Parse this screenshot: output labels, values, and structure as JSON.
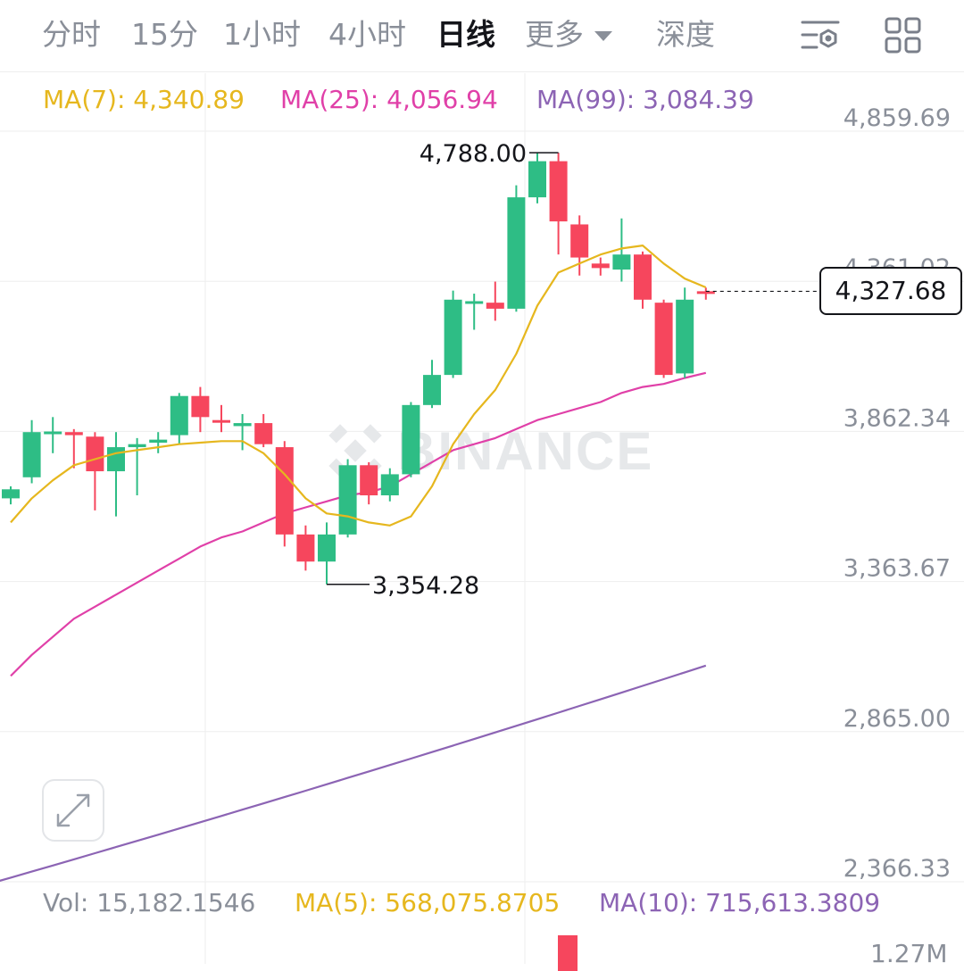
{
  "tabs": [
    {
      "label": "分时",
      "active": false
    },
    {
      "label": "15分",
      "active": false
    },
    {
      "label": "1小时",
      "active": false
    },
    {
      "label": "4小时",
      "active": false
    },
    {
      "label": "日线",
      "active": true
    },
    {
      "label": "更多",
      "active": false
    },
    {
      "label": "深度",
      "active": false
    }
  ],
  "toolbar": {
    "icons": [
      "indicator-settings-icon",
      "grid-layout-icon"
    ]
  },
  "legend": {
    "ma7": "MA(7): 4,340.89",
    "ma25": "MA(25): 4,056.94",
    "ma99": "MA(99): 3,084.39"
  },
  "volume_legend": {
    "vol": "Vol: 15,182.1546",
    "ma5": "MA(5): 568,075.8705",
    "ma10": "MA(10): 715,613.3809"
  },
  "watermark": "BINANCE",
  "current_price": "4,327.68",
  "high_label": "4,788.00",
  "low_label": "3,354.28",
  "volume_axis_label": "1.27M",
  "colors": {
    "up": "#2ebd85",
    "down": "#f6465d",
    "ma7": "#e6b71e",
    "ma25": "#e040a8",
    "ma99": "#8c64b4",
    "grid": "#eeeeee",
    "axis_text": "#8a8f99"
  },
  "chart_data": {
    "type": "candlestick",
    "y_axis": {
      "ticks": [
        4859.69,
        4361.02,
        3862.34,
        3363.67,
        2865.0,
        2366.33
      ],
      "tick_labels": [
        "4,859.69",
        "4,361.02",
        "3,862.34",
        "3,363.67",
        "2,865.00",
        "2,366.33"
      ]
    },
    "candles": [
      {
        "o": 3640,
        "c": 3670,
        "h": 3680,
        "l": 3620
      },
      {
        "o": 3710,
        "c": 3860,
        "h": 3900,
        "l": 3690
      },
      {
        "o": 3858,
        "c": 3862,
        "h": 3910,
        "l": 3790
      },
      {
        "o": 3860,
        "c": 3850,
        "h": 3870,
        "l": 3740
      },
      {
        "o": 3845,
        "c": 3730,
        "h": 3860,
        "l": 3600
      },
      {
        "o": 3730,
        "c": 3810,
        "h": 3860,
        "l": 3580
      },
      {
        "o": 3810,
        "c": 3820,
        "h": 3840,
        "l": 3650
      },
      {
        "o": 3825,
        "c": 3835,
        "h": 3860,
        "l": 3790
      },
      {
        "o": 3850,
        "c": 3980,
        "h": 3990,
        "l": 3820
      },
      {
        "o": 3980,
        "c": 3910,
        "h": 4010,
        "l": 3860
      },
      {
        "o": 3900,
        "c": 3895,
        "h": 3950,
        "l": 3860
      },
      {
        "o": 3880,
        "c": 3890,
        "h": 3920,
        "l": 3800
      },
      {
        "o": 3890,
        "c": 3820,
        "h": 3920,
        "l": 3810
      },
      {
        "o": 3810,
        "c": 3520,
        "h": 3830,
        "l": 3480
      },
      {
        "o": 3520,
        "c": 3430,
        "h": 3550,
        "l": 3400
      },
      {
        "o": 3430,
        "c": 3520,
        "h": 3560,
        "l": 3354.28
      },
      {
        "o": 3520,
        "c": 3750,
        "h": 3770,
        "l": 3510
      },
      {
        "o": 3750,
        "c": 3650,
        "h": 3760,
        "l": 3620
      },
      {
        "o": 3650,
        "c": 3720,
        "h": 3740,
        "l": 3630
      },
      {
        "o": 3720,
        "c": 3950,
        "h": 3960,
        "l": 3710
      },
      {
        "o": 3950,
        "c": 4050,
        "h": 4100,
        "l": 3940
      },
      {
        "o": 4050,
        "c": 4300,
        "h": 4330,
        "l": 4040
      },
      {
        "o": 4290,
        "c": 4295,
        "h": 4320,
        "l": 4200
      },
      {
        "o": 4290,
        "c": 4270,
        "h": 4360,
        "l": 4230
      },
      {
        "o": 4270,
        "c": 4640,
        "h": 4680,
        "l": 4260
      },
      {
        "o": 4640,
        "c": 4760,
        "h": 4788.0,
        "l": 4620
      },
      {
        "o": 4760,
        "c": 4560,
        "h": 4788.0,
        "l": 4450
      },
      {
        "o": 4550,
        "c": 4440,
        "h": 4580,
        "l": 4380
      },
      {
        "o": 4420,
        "c": 4405,
        "h": 4440,
        "l": 4380
      },
      {
        "o": 4400,
        "c": 4450,
        "h": 4570,
        "l": 4360
      },
      {
        "o": 4450,
        "c": 4300,
        "h": 4460,
        "l": 4270
      },
      {
        "o": 4290,
        "c": 4050,
        "h": 4300,
        "l": 4040
      },
      {
        "o": 4055,
        "c": 4300,
        "h": 4340,
        "l": 4040
      },
      {
        "o": 4328,
        "c": 4327.68,
        "h": 4340,
        "l": 4300
      }
    ],
    "ma7": [
      3560,
      3640,
      3700,
      3750,
      3770,
      3790,
      3800,
      3810,
      3820,
      3825,
      3830,
      3830,
      3790,
      3720,
      3640,
      3590,
      3580,
      3560,
      3550,
      3580,
      3680,
      3820,
      3920,
      4000,
      4120,
      4280,
      4390,
      4420,
      4450,
      4470,
      4480,
      4420,
      4370,
      4340.89
    ],
    "ma25": [
      3050,
      3120,
      3180,
      3240,
      3280,
      3320,
      3360,
      3400,
      3440,
      3480,
      3510,
      3530,
      3560,
      3590,
      3610,
      3630,
      3650,
      3660,
      3680,
      3720,
      3760,
      3800,
      3820,
      3840,
      3870,
      3900,
      3920,
      3940,
      3960,
      3990,
      4010,
      4020,
      4040,
      4056.94
    ],
    "ma99_start": 2360,
    "ma99_end": 3084.39
  }
}
